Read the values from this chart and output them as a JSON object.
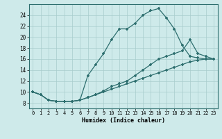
{
  "title": "",
  "xlabel": "Humidex (Indice chaleur)",
  "bg_color": "#ceeaea",
  "line_color": "#2d6e6e",
  "grid_color": "#a8cccc",
  "xlim": [
    -0.5,
    23.5
  ],
  "ylim": [
    7,
    26
  ],
  "xticks": [
    0,
    1,
    2,
    3,
    4,
    5,
    6,
    7,
    8,
    9,
    10,
    11,
    12,
    13,
    14,
    15,
    16,
    17,
    18,
    19,
    20,
    21,
    22,
    23
  ],
  "yticks": [
    8,
    10,
    12,
    14,
    16,
    18,
    20,
    22,
    24
  ],
  "line1_x": [
    0,
    1,
    2,
    3,
    4,
    5,
    6,
    7,
    8,
    9,
    10,
    11,
    12,
    13,
    14,
    15,
    16,
    17,
    18,
    19,
    20,
    21,
    22,
    23
  ],
  "line1_y": [
    10,
    9.5,
    8.5,
    8.3,
    8.3,
    8.3,
    8.5,
    13.0,
    15.0,
    17.0,
    19.5,
    21.5,
    21.5,
    22.5,
    24.0,
    24.8,
    25.2,
    23.5,
    21.5,
    18.5,
    16.5,
    16.2,
    16.0,
    16.0
  ],
  "line2_x": [
    0,
    1,
    2,
    3,
    4,
    5,
    6,
    7,
    8,
    9,
    10,
    11,
    12,
    13,
    14,
    15,
    16,
    17,
    18,
    19,
    20,
    21,
    22,
    23
  ],
  "line2_y": [
    10,
    9.5,
    8.5,
    8.3,
    8.3,
    8.3,
    8.5,
    9.0,
    9.5,
    10.2,
    11.0,
    11.5,
    12.0,
    13.0,
    14.0,
    15.0,
    16.0,
    16.5,
    17.0,
    17.5,
    19.5,
    17.0,
    16.5,
    16.0
  ],
  "line3_x": [
    0,
    1,
    2,
    3,
    4,
    5,
    6,
    7,
    8,
    9,
    10,
    11,
    12,
    13,
    14,
    15,
    16,
    17,
    18,
    19,
    20,
    21,
    22,
    23
  ],
  "line3_y": [
    10,
    9.5,
    8.5,
    8.3,
    8.3,
    8.3,
    8.5,
    9.0,
    9.5,
    10.0,
    10.5,
    11.0,
    11.5,
    12.0,
    12.5,
    13.0,
    13.5,
    14.0,
    14.5,
    15.0,
    15.5,
    15.8,
    16.0,
    16.0
  ]
}
